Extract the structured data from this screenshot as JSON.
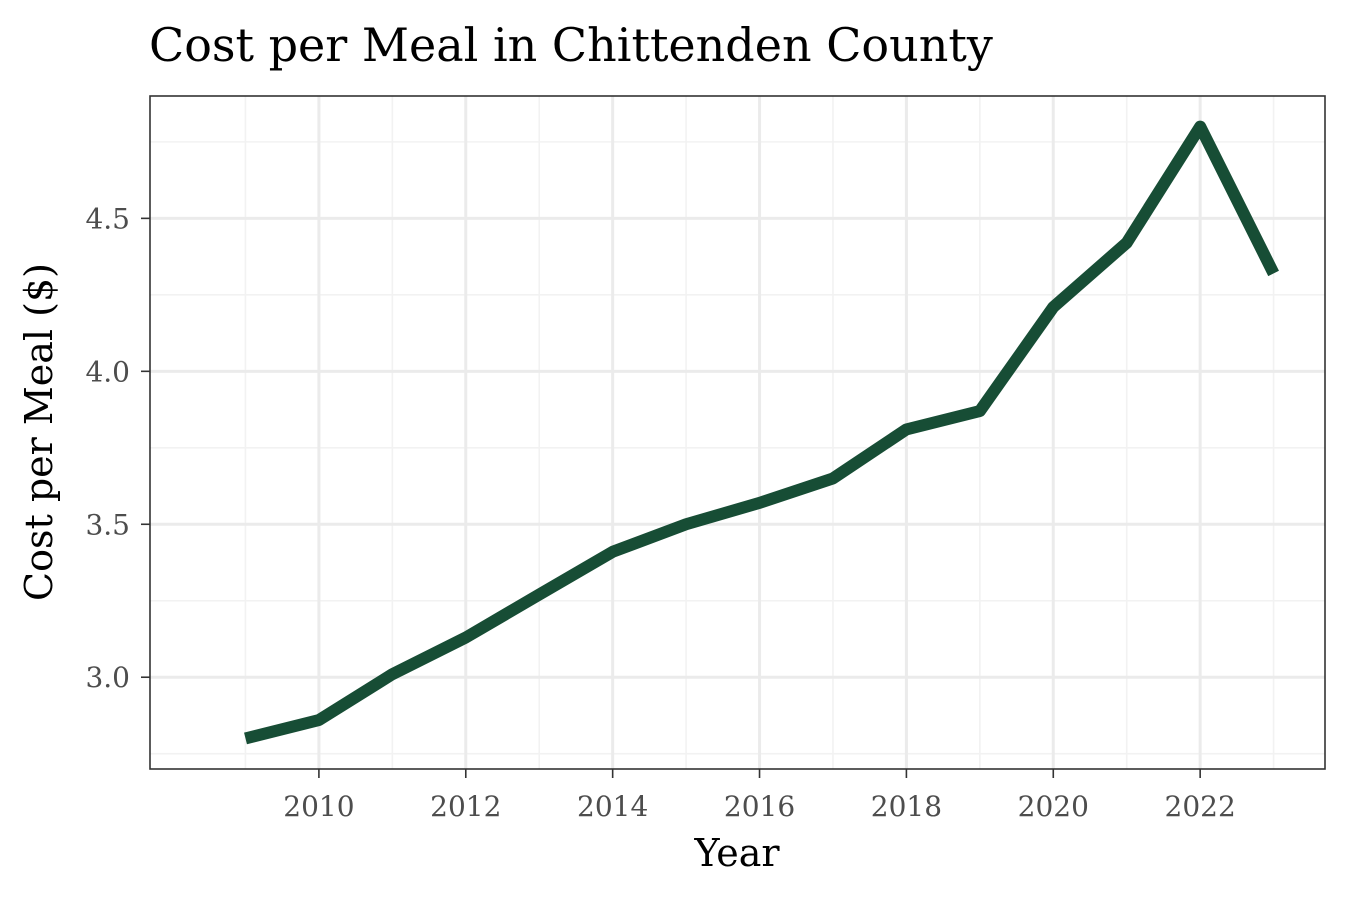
{
  "chart_data": {
    "type": "line",
    "title": "Cost per Meal in Chittenden County",
    "xlabel": "Year",
    "ylabel": "Cost per Meal ($)",
    "x": [
      2009,
      2010,
      2011,
      2012,
      2013,
      2014,
      2015,
      2016,
      2017,
      2018,
      2019,
      2020,
      2021,
      2022,
      2023
    ],
    "series": [
      {
        "values": [
          2.8,
          2.86,
          3.01,
          3.13,
          3.27,
          3.41,
          3.5,
          3.57,
          3.65,
          3.81,
          3.87,
          4.21,
          4.42,
          4.8,
          4.32
        ],
        "color": "#174d35"
      }
    ],
    "xlim": [
      2007.7,
      2023.7
    ],
    "ylim": [
      2.7,
      4.9
    ],
    "x_ticks": [
      2010,
      2012,
      2014,
      2016,
      2018,
      2020,
      2022
    ],
    "x_tick_labels": [
      "2010",
      "2012",
      "2014",
      "2016",
      "2018",
      "2020",
      "2022"
    ],
    "y_ticks": [
      3.0,
      3.5,
      4.0,
      4.5
    ],
    "y_tick_labels": [
      "3.0",
      "3.5",
      "4.0",
      "4.5"
    ],
    "grid": true,
    "minor_grid": true,
    "legend": "none",
    "colors": {
      "line": "#174d35",
      "grid_major": "#ebebeb",
      "grid_minor": "#f2f2f2",
      "panel_border": "#333333",
      "tick_label": "#4d4d4d"
    }
  }
}
